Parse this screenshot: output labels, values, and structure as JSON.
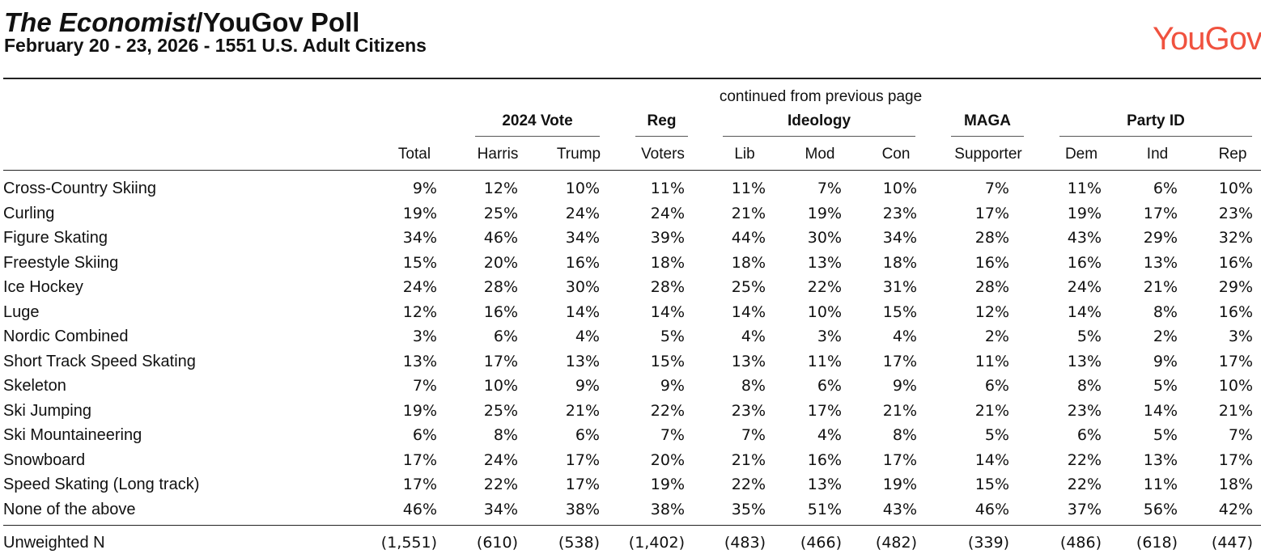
{
  "header": {
    "title_italic": "The Economist",
    "title_rest": "/YouGov Poll",
    "subtitle": "February 20 - 23, 2026 - 1551 U.S. Adult Citizens",
    "logo": "YouGov"
  },
  "table": {
    "note": "continued from previous page",
    "groups": [
      "2024 Vote",
      "Reg",
      "Ideology",
      "MAGA",
      "Party ID"
    ],
    "columns": [
      "Total",
      "Harris",
      "Trump",
      "Voters",
      "Lib",
      "Mod",
      "Con",
      "Supporter",
      "Dem",
      "Ind",
      "Rep"
    ],
    "rows": [
      {
        "label": "Cross-Country Skiing",
        "values": [
          "9%",
          "12%",
          "10%",
          "11%",
          "11%",
          "7%",
          "10%",
          "7%",
          "11%",
          "6%",
          "10%"
        ]
      },
      {
        "label": "Curling",
        "values": [
          "19%",
          "25%",
          "24%",
          "24%",
          "21%",
          "19%",
          "23%",
          "17%",
          "19%",
          "17%",
          "23%"
        ]
      },
      {
        "label": "Figure Skating",
        "values": [
          "34%",
          "46%",
          "34%",
          "39%",
          "44%",
          "30%",
          "34%",
          "28%",
          "43%",
          "29%",
          "32%"
        ]
      },
      {
        "label": "Freestyle Skiing",
        "values": [
          "15%",
          "20%",
          "16%",
          "18%",
          "18%",
          "13%",
          "18%",
          "16%",
          "16%",
          "13%",
          "16%"
        ]
      },
      {
        "label": "Ice Hockey",
        "values": [
          "24%",
          "28%",
          "30%",
          "28%",
          "25%",
          "22%",
          "31%",
          "28%",
          "24%",
          "21%",
          "29%"
        ]
      },
      {
        "label": "Luge",
        "values": [
          "12%",
          "16%",
          "14%",
          "14%",
          "14%",
          "10%",
          "15%",
          "12%",
          "14%",
          "8%",
          "16%"
        ]
      },
      {
        "label": "Nordic Combined",
        "values": [
          "3%",
          "6%",
          "4%",
          "5%",
          "4%",
          "3%",
          "4%",
          "2%",
          "5%",
          "2%",
          "3%"
        ]
      },
      {
        "label": "Short Track Speed Skating",
        "values": [
          "13%",
          "17%",
          "13%",
          "15%",
          "13%",
          "11%",
          "17%",
          "11%",
          "13%",
          "9%",
          "17%"
        ]
      },
      {
        "label": "Skeleton",
        "values": [
          "7%",
          "10%",
          "9%",
          "9%",
          "8%",
          "6%",
          "9%",
          "6%",
          "8%",
          "5%",
          "10%"
        ]
      },
      {
        "label": "Ski Jumping",
        "values": [
          "19%",
          "25%",
          "21%",
          "22%",
          "23%",
          "17%",
          "21%",
          "21%",
          "23%",
          "14%",
          "21%"
        ]
      },
      {
        "label": "Ski Mountaineering",
        "values": [
          "6%",
          "8%",
          "6%",
          "7%",
          "7%",
          "4%",
          "8%",
          "5%",
          "6%",
          "5%",
          "7%"
        ]
      },
      {
        "label": "Snowboard",
        "values": [
          "17%",
          "24%",
          "17%",
          "20%",
          "21%",
          "16%",
          "17%",
          "14%",
          "22%",
          "13%",
          "17%"
        ]
      },
      {
        "label": "Speed Skating (Long track)",
        "values": [
          "17%",
          "22%",
          "17%",
          "19%",
          "22%",
          "13%",
          "19%",
          "15%",
          "22%",
          "11%",
          "18%"
        ]
      },
      {
        "label": "None of the above",
        "values": [
          "46%",
          "34%",
          "38%",
          "38%",
          "35%",
          "51%",
          "43%",
          "46%",
          "37%",
          "56%",
          "42%"
        ]
      }
    ],
    "footer": {
      "label": "Unweighted N",
      "values": [
        "(1,551)",
        "(610)",
        "(538)",
        "(1,402)",
        "(483)",
        "(466)",
        "(482)",
        "(339)",
        "(486)",
        "(618)",
        "(447)"
      ]
    }
  }
}
